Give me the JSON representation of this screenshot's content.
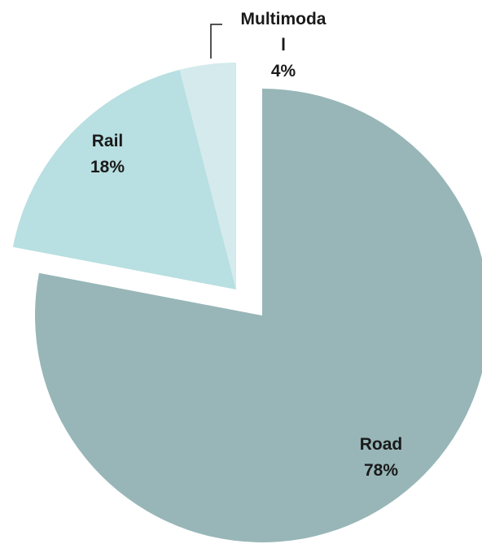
{
  "chart_data": {
    "type": "pie",
    "title": "",
    "slices": [
      {
        "label": "Road",
        "value": 78,
        "value_label": "78%",
        "color": "#98b6b7",
        "exploded": false
      },
      {
        "label": "Rail",
        "value": 18,
        "value_label": "18%",
        "color": "#b8dfe1",
        "exploded": true
      },
      {
        "label": "Multimoda\nl",
        "value": 4,
        "value_label": "4%",
        "color": "#d4eaec",
        "exploded": true
      }
    ],
    "legend": "none"
  }
}
